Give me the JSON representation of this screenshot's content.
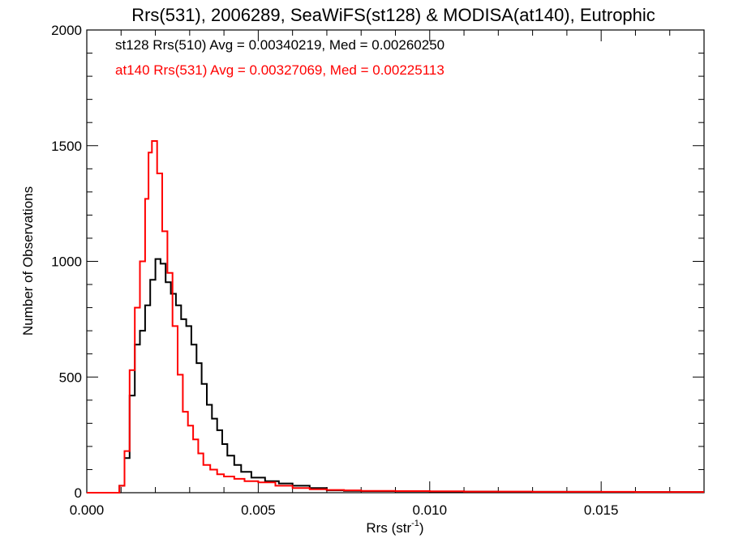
{
  "chart_data": {
    "type": "line",
    "title": "Rrs(531), 2006289, SeaWiFS(st128) & MODISA(at140), Eutrophic",
    "xlabel_main": "Rrs (str",
    "xlabel_sup": "-1",
    "xlabel_close": ")",
    "ylabel": "Number of Observations",
    "xlim": [
      0.0,
      0.018
    ],
    "ylim": [
      0,
      2000
    ],
    "x_ticks": [
      0.0,
      0.005,
      0.01,
      0.015
    ],
    "x_tick_labels": [
      "0.000",
      "0.005",
      "0.010",
      "0.015"
    ],
    "y_ticks": [
      0,
      500,
      1000,
      1500,
      2000
    ],
    "y_tick_labels": [
      "0",
      "500",
      "1000",
      "1500",
      "2000"
    ],
    "grid": false,
    "legend_position": "top-left",
    "step": true,
    "series": [
      {
        "name": "st128 Rrs(510) Avg = 0.00340219, Med = 0.00260250",
        "color": "#000000",
        "x": [
          0.0008,
          0.00095,
          0.0011,
          0.00125,
          0.0014,
          0.00155,
          0.0017,
          0.00185,
          0.002,
          0.00215,
          0.0023,
          0.00245,
          0.0026,
          0.00275,
          0.0029,
          0.00305,
          0.0032,
          0.00335,
          0.0035,
          0.00365,
          0.0038,
          0.00395,
          0.0041,
          0.0043,
          0.0045,
          0.0048,
          0.0052,
          0.0056,
          0.006,
          0.0065,
          0.007,
          0.0072,
          0.0075,
          0.008,
          0.009,
          0.01,
          0.011,
          0.012,
          0.013,
          0.014,
          0.015,
          0.016,
          0.017,
          0.018
        ],
        "y": [
          0,
          30,
          150,
          420,
          640,
          700,
          810,
          920,
          1010,
          990,
          910,
          860,
          810,
          750,
          720,
          640,
          560,
          470,
          380,
          320,
          270,
          210,
          160,
          120,
          90,
          65,
          50,
          40,
          30,
          20,
          10,
          10,
          8,
          7,
          6,
          5,
          5,
          4,
          4,
          4,
          3,
          3,
          3,
          3
        ]
      },
      {
        "name": "at140 Rrs(531) Avg = 0.00327069, Med = 0.00225113",
        "color": "#ff0000",
        "x": [
          0.0008,
          0.00095,
          0.0011,
          0.00125,
          0.0014,
          0.00155,
          0.0017,
          0.0018,
          0.0019,
          0.00205,
          0.0022,
          0.00235,
          0.0025,
          0.00265,
          0.0028,
          0.00295,
          0.0031,
          0.00325,
          0.0034,
          0.0036,
          0.0038,
          0.004,
          0.0043,
          0.0046,
          0.005,
          0.0055,
          0.006,
          0.0065,
          0.007,
          0.0075,
          0.008,
          0.009,
          0.01,
          0.011,
          0.012,
          0.013,
          0.014,
          0.015,
          0.016,
          0.017,
          0.018
        ],
        "y": [
          0,
          30,
          180,
          530,
          800,
          1000,
          1270,
          1470,
          1520,
          1380,
          1130,
          950,
          720,
          510,
          350,
          290,
          230,
          170,
          120,
          100,
          80,
          70,
          60,
          50,
          45,
          30,
          20,
          15,
          12,
          10,
          8,
          7,
          6,
          5,
          5,
          4,
          4,
          4,
          3,
          3,
          3
        ]
      }
    ]
  }
}
